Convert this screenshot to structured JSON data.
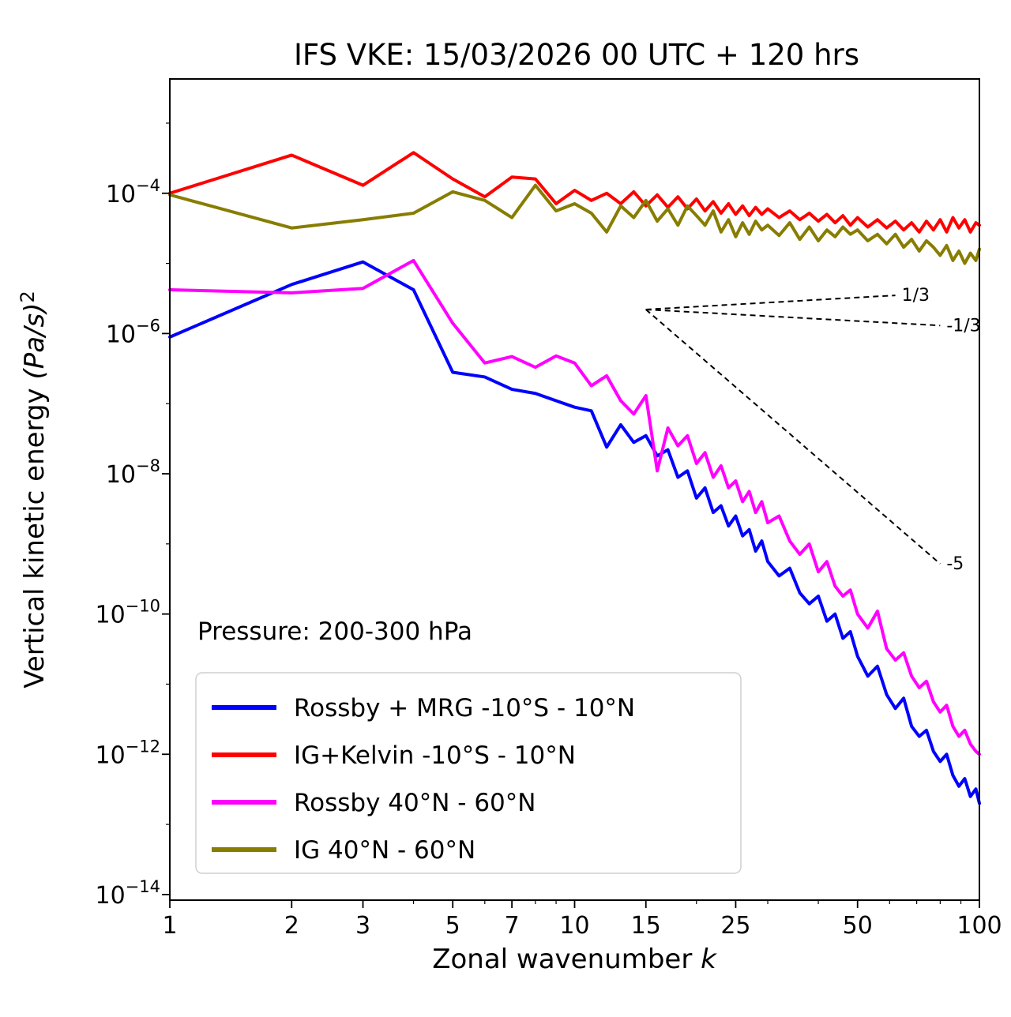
{
  "chart_data": {
    "type": "line",
    "title": "IFS VKE: 15/03/2026 00 UTC + 120 hrs",
    "xlabel": {
      "text": "Zonal wavenumber ",
      "math": "k"
    },
    "ylabel": {
      "text": "Vertical kinetic energy ",
      "math": "(Pa/s)",
      "exponent": "2"
    },
    "annotation": "Pressure: 200-300 hPa",
    "x_scale": "log",
    "y_scale": "log",
    "xlim": [
      1,
      100
    ],
    "ylim_log10": [
      -14.08,
      -2.37
    ],
    "x_ticks": [
      1,
      2,
      3,
      5,
      7,
      10,
      15,
      25,
      50,
      100
    ],
    "x_minor_ticks": [
      4,
      6,
      8,
      9,
      20,
      30,
      40,
      60,
      70,
      80,
      90
    ],
    "y_tick_exponents": [
      -4,
      -6,
      -8,
      -10,
      -12,
      -14
    ],
    "y_minor_tick_exponents": [
      -3,
      -5,
      -7,
      -9,
      -11,
      -13
    ],
    "legend_position": "lower left",
    "grid": false,
    "k": [
      1,
      2,
      3,
      4,
      5,
      6,
      7,
      8,
      9,
      10,
      11,
      12,
      13,
      14,
      15,
      16,
      17,
      18,
      19,
      20,
      21,
      22,
      23,
      24,
      25,
      26,
      27,
      28,
      29,
      30,
      32,
      34,
      36,
      38,
      40,
      42,
      44,
      46,
      48,
      50,
      53,
      56,
      59,
      62,
      65,
      68,
      71,
      74,
      77,
      80,
      83,
      86,
      89,
      92,
      95,
      98,
      100
    ],
    "series": [
      {
        "name": "Rossby + MRG -10°S - 10°N",
        "color": "#0000ff",
        "values": [
          8.9e-07,
          5e-06,
          1.05e-05,
          4.2e-06,
          2.8e-07,
          2.4e-07,
          1.6e-07,
          1.4e-07,
          1.1e-07,
          8.9e-08,
          7.9e-08,
          2.4e-08,
          5e-08,
          2.8e-08,
          3.5e-08,
          1.8e-08,
          2.2e-08,
          8.9e-09,
          1.1e-08,
          4.5e-09,
          6.3e-09,
          2.8e-09,
          3.5e-09,
          1.8e-09,
          2.5e-09,
          1.3e-09,
          1.6e-09,
          7.9e-10,
          1.1e-09,
          5.6e-10,
          3.5e-10,
          4.5e-10,
          2e-10,
          1.4e-10,
          1.8e-10,
          7.9e-11,
          1e-10,
          4.5e-11,
          5.6e-11,
          2.5e-11,
          1.3e-11,
          1.8e-11,
          7.1e-12,
          4.5e-12,
          6.3e-12,
          2.5e-12,
          1.8e-12,
          2.2e-12,
          1.1e-12,
          7.9e-13,
          1e-12,
          5e-13,
          3.5e-13,
          4.5e-13,
          2.5e-13,
          3.2e-13,
          2e-13
        ]
      },
      {
        "name": "IG+Kelvin -10°S - 10°N",
        "color": "#ff0000",
        "values": [
          0.0001,
          0.00035,
          0.00013,
          0.00038,
          0.00016,
          8.9e-05,
          0.00017,
          0.00016,
          7.1e-05,
          0.00011,
          7.9e-05,
          0.0001,
          7.1e-05,
          0.000105,
          6.6e-05,
          9.5e-05,
          6.3e-05,
          8.9e-05,
          6e-05,
          8.3e-05,
          5.6e-05,
          7.6e-05,
          5.2e-05,
          7.1e-05,
          5e-05,
          6.6e-05,
          4.8e-05,
          6.3e-05,
          5e-05,
          6e-05,
          4.5e-05,
          5.6e-05,
          4.2e-05,
          5.2e-05,
          4e-05,
          5e-05,
          3.8e-05,
          4.8e-05,
          3.5e-05,
          4.5e-05,
          3.3e-05,
          4.2e-05,
          3.2e-05,
          4e-05,
          3e-05,
          3.8e-05,
          2.8e-05,
          4e-05,
          3e-05,
          4.2e-05,
          2.8e-05,
          4.5e-05,
          3.2e-05,
          4.2e-05,
          2.8e-05,
          3.8e-05,
          3.5e-05
        ]
      },
      {
        "name": "Rossby 40°N - 60°N",
        "color": "#ff00ff",
        "values": [
          4.2e-06,
          3.8e-06,
          4.4e-06,
          1.1e-05,
          1.4e-06,
          3.8e-07,
          4.7e-07,
          3.3e-07,
          4.8e-07,
          3.8e-07,
          1.8e-07,
          2.5e-07,
          1.1e-07,
          7.1e-08,
          1.3e-07,
          1.1e-08,
          4.5e-08,
          2.5e-08,
          3.5e-08,
          1.4e-08,
          2e-08,
          8.9e-09,
          1.3e-08,
          6.3e-09,
          7.9e-09,
          4e-09,
          5.6e-09,
          2.8e-09,
          4e-09,
          2e-09,
          2.5e-09,
          1.1e-09,
          7.1e-10,
          1e-09,
          4e-10,
          5.6e-10,
          2.5e-10,
          1.8e-10,
          2.2e-10,
          1e-10,
          6.3e-11,
          1.1e-10,
          3.2e-11,
          2.2e-11,
          2.8e-11,
          1.3e-11,
          8.9e-12,
          1.1e-11,
          5.6e-12,
          4e-12,
          5e-12,
          2.5e-12,
          1.8e-12,
          2.2e-12,
          1.4e-12,
          1.1e-12,
          1e-12
        ]
      },
      {
        "name": "IG 40°N - 60°N",
        "color": "#877d00",
        "values": [
          9.5e-05,
          3.2e-05,
          4.2e-05,
          5.2e-05,
          0.000105,
          7.9e-05,
          4.5e-05,
          0.00013,
          5.6e-05,
          7.1e-05,
          5.2e-05,
          2.8e-05,
          6.6e-05,
          4.5e-05,
          7.9e-05,
          4e-05,
          6e-05,
          3.5e-05,
          6.6e-05,
          4.8e-05,
          3.5e-05,
          5.6e-05,
          2.8e-05,
          4.2e-05,
          2.4e-05,
          3.8e-05,
          2.6e-05,
          4e-05,
          3e-05,
          3.5e-05,
          2.5e-05,
          3.8e-05,
          2.2e-05,
          3.3e-05,
          2.1e-05,
          3e-05,
          2.4e-05,
          3.3e-05,
          2.6e-05,
          3e-05,
          2.1e-05,
          2.6e-05,
          1.9e-05,
          2.6e-05,
          1.7e-05,
          2.2e-05,
          1.5e-05,
          2.1e-05,
          1.7e-05,
          1.3e-05,
          1.8e-05,
          1.1e-05,
          1.5e-05,
          1e-05,
          1.4e-05,
          1.1e-05,
          1.6e-05
        ]
      }
    ],
    "reference_lines": [
      {
        "label": "1/3",
        "slope": 0.333,
        "x": [
          15,
          62
        ],
        "y": [
          2.2e-06,
          3.5e-06
        ]
      },
      {
        "label": "-1/3",
        "slope": -0.333,
        "x": [
          15,
          80
        ],
        "y": [
          2.2e-06,
          1.3e-06
        ]
      },
      {
        "label": "-5",
        "slope": -5,
        "x": [
          15,
          80
        ],
        "y": [
          2.2e-06,
          5.2e-10
        ]
      }
    ]
  }
}
